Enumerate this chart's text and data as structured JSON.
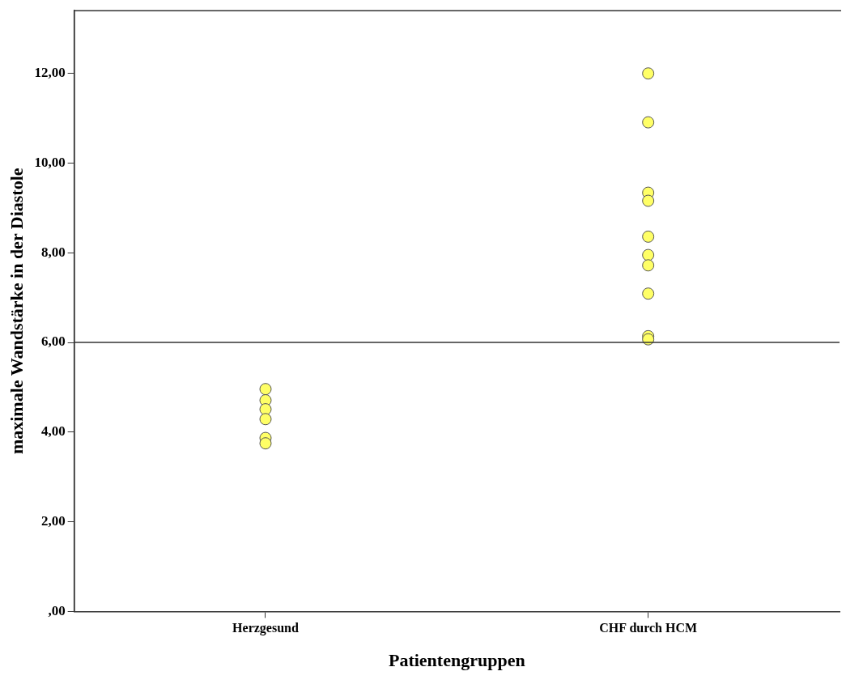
{
  "chart_data": {
    "type": "scatter",
    "xlabel": "Patientengruppen",
    "ylabel": "maximale Wandstärke in der Diastole",
    "categories": [
      "Herzgesund",
      "CHF durch HCM"
    ],
    "series": [
      {
        "color": "#ffff66",
        "x": [
          "Herzgesund",
          "Herzgesund",
          "Herzgesund",
          "Herzgesund",
          "Herzgesund",
          "Herzgesund",
          "Herzgesund",
          "CHF durch HCM",
          "CHF durch HCM",
          "CHF durch HCM",
          "CHF durch HCM",
          "CHF durch HCM",
          "CHF durch HCM",
          "CHF durch HCM",
          "CHF durch HCM",
          "CHF durch HCM",
          "CHF durch HCM"
        ],
        "values": [
          4.96,
          null,
          4.71,
          4.51,
          4.29,
          3.87,
          3.75,
          12.0,
          10.91,
          9.34,
          9.16,
          8.36,
          7.95,
          7.72,
          7.09,
          6.14,
          6.07
        ]
      }
    ],
    "ylim": [
      0,
      13.4
    ],
    "yticks": [
      {
        "value": 0,
        "label": ",00"
      },
      {
        "value": 2,
        "label": "2,00"
      },
      {
        "value": 4,
        "label": "4,00"
      },
      {
        "value": 6,
        "label": "6,00"
      },
      {
        "value": 8,
        "label": "8,00"
      },
      {
        "value": 10,
        "label": "10,00"
      },
      {
        "value": 12,
        "label": "12,00"
      }
    ],
    "ref_lines": [
      {
        "axis": "y",
        "value": 6,
        "color": "#333333"
      }
    ],
    "grid": false,
    "legend": false,
    "marker": "circle"
  }
}
